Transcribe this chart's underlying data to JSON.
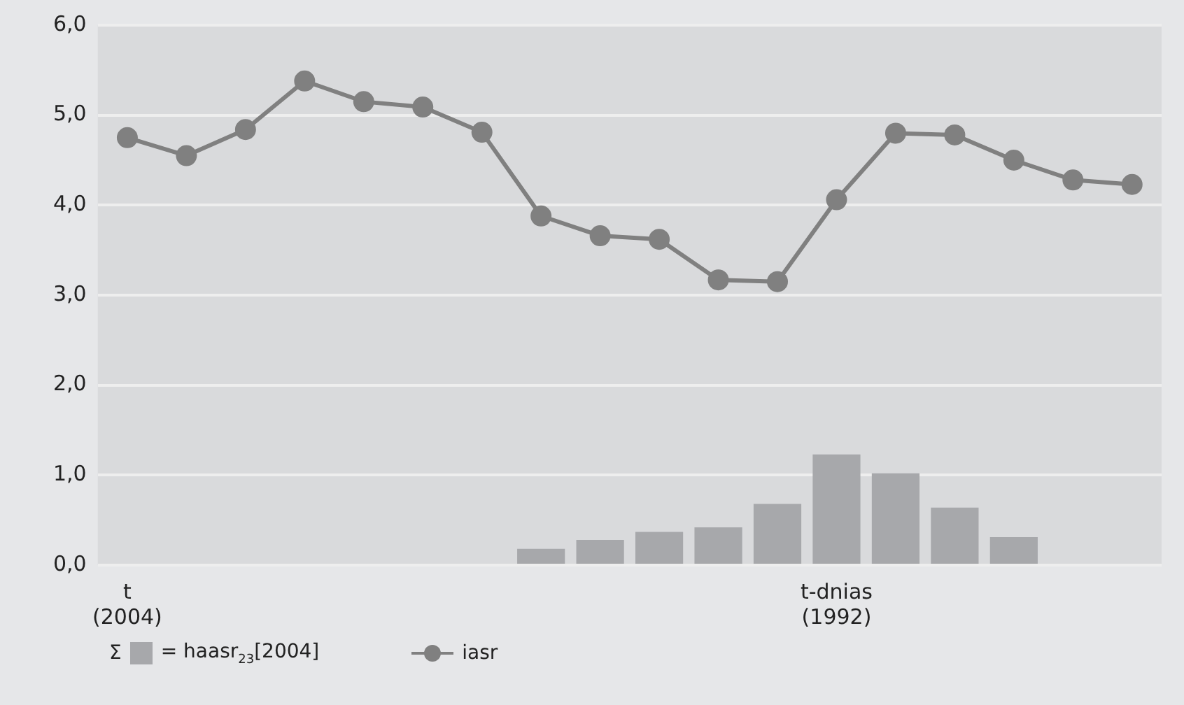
{
  "chart_data": {
    "type": "bar",
    "categories": [
      [
        "t",
        "(2004)"
      ],
      null,
      null,
      null,
      null,
      null,
      null,
      null,
      null,
      null,
      null,
      null,
      [
        "t-dnias",
        "(1992)"
      ],
      null,
      null,
      null,
      null,
      null
    ],
    "series": [
      {
        "name": "= haasr$_{23}$[2004]",
        "color": "#a7a8ab",
        "values": [
          null,
          null,
          null,
          null,
          null,
          null,
          null,
          0.18,
          0.28,
          0.37,
          0.42,
          0.68,
          1.23,
          1.02,
          0.64,
          0.31,
          null,
          null
        ]
      },
      {
        "type": "line",
        "name": "iasr",
        "color": "#808080",
        "values": [
          4.75,
          4.55,
          4.84,
          5.38,
          5.15,
          5.09,
          4.81,
          3.88,
          3.66,
          3.62,
          3.17,
          3.15,
          4.06,
          4.8,
          4.78,
          4.5,
          4.28,
          4.23
        ]
      }
    ],
    "legend_title": "Σ",
    "ylim": [
      0,
      6
    ],
    "yticks": [
      {
        "value": 0,
        "label": "0,0"
      },
      {
        "value": 1,
        "label": "1,0"
      },
      {
        "value": 2,
        "label": "2,0"
      },
      {
        "value": 3,
        "label": "3,0"
      },
      {
        "value": 4,
        "label": "4,0"
      },
      {
        "value": 5,
        "label": "5,0"
      },
      {
        "value": 6,
        "label": "6,0"
      }
    ],
    "grid": "y",
    "legend": "bottom left",
    "marker": "circle",
    "line_style": "solid"
  }
}
